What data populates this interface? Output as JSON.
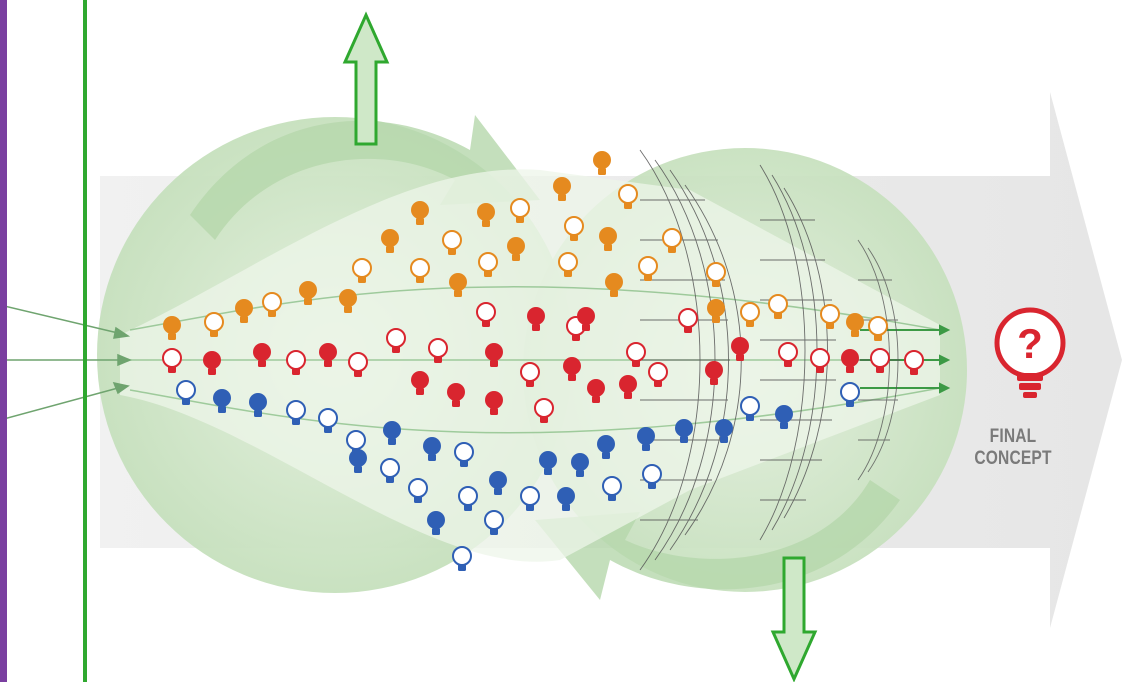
{
  "final_concept": {
    "line1": "FINAL",
    "line2": "CONCEPT",
    "question_mark": "?"
  },
  "colors": {
    "orange": "#e58a1f",
    "red": "#d9252f",
    "blue": "#2f5fb5",
    "green_line": "#2fa82f",
    "purple_line": "#7a3fa0",
    "circle_fill": "#cfe5c8",
    "band_fill": "#eeeeee",
    "arrow_fill": "#cfe8c8",
    "arrow_stroke": "#2fa82f"
  },
  "icons": {
    "bulb": "lightbulb-icon",
    "final": "question-bulb-icon",
    "filter": "filter-net-icon"
  }
}
